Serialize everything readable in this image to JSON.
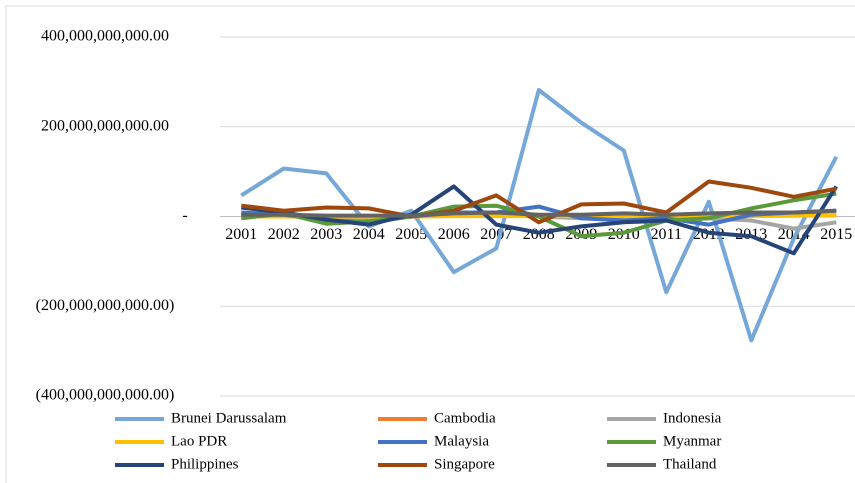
{
  "chart_data": {
    "type": "line",
    "categories": [
      "2001",
      "2002",
      "2003",
      "2004",
      "2005",
      "2006",
      "2007",
      "2008",
      "2009",
      "2010",
      "2011",
      "2012",
      "2013",
      "2014",
      "2015"
    ],
    "ylim": [
      -400000000000,
      400000000000
    ],
    "yticks": [
      {
        "value": -400000000000,
        "label": "(400,000,000,000.00)"
      },
      {
        "value": -200000000000,
        "label": "(200,000,000,000.00)"
      },
      {
        "value": 0,
        "label": "-"
      },
      {
        "value": 200000000000,
        "label": "200,000,000,000.00"
      },
      {
        "value": 400000000000,
        "label": "400,000,000,000.00"
      }
    ],
    "grid": true,
    "legend": "bottom",
    "series": [
      {
        "name": "Brunei Darussalam",
        "color": "#75a7d8",
        "values": [
          47000000000,
          107000000000,
          96000000000,
          -22000000000,
          13000000000,
          -124000000000,
          -71000000000,
          282000000000,
          209000000000,
          147000000000,
          -169000000000,
          33000000000,
          -276000000000,
          -49000000000,
          133000000000
        ]
      },
      {
        "name": "Cambodia",
        "color": "#ed7d31",
        "values": [
          1000000000,
          1000000000,
          1000000000,
          1000000000,
          1000000000,
          2000000000,
          2000000000,
          2000000000,
          2000000000,
          2000000000,
          2000000000,
          2000000000,
          2000000000,
          2000000000,
          3000000000
        ]
      },
      {
        "name": "Indonesia",
        "color": "#a5a5a5",
        "values": [
          0,
          2000000000,
          -2000000000,
          -4000000000,
          0,
          2000000000,
          4000000000,
          0,
          -4000000000,
          -2000000000,
          -4000000000,
          -4000000000,
          -9000000000,
          -27000000000,
          -13000000000
        ]
      },
      {
        "name": "Lao PDR",
        "color": "#ffc000",
        "values": [
          0,
          0,
          0,
          0,
          0,
          1000000000,
          1000000000,
          1000000000,
          1000000000,
          1000000000,
          1000000000,
          1000000000,
          1000000000,
          2000000000,
          2000000000
        ]
      },
      {
        "name": "Malaysia",
        "color": "#4472c4",
        "values": [
          9000000000,
          4000000000,
          -9000000000,
          -13000000000,
          0,
          9000000000,
          9000000000,
          22000000000,
          -4000000000,
          -9000000000,
          -4000000000,
          -18000000000,
          4000000000,
          9000000000,
          13000000000
        ]
      },
      {
        "name": "Myanmar",
        "color": "#5b9a3a",
        "values": [
          -4000000000,
          7000000000,
          -16000000000,
          -11000000000,
          0,
          22000000000,
          24000000000,
          0,
          -44000000000,
          -36000000000,
          -9000000000,
          -4000000000,
          18000000000,
          36000000000,
          51000000000
        ]
      },
      {
        "name": "Philippines",
        "color": "#264478",
        "values": [
          20000000000,
          9000000000,
          -7000000000,
          -18000000000,
          4000000000,
          67000000000,
          -18000000000,
          -36000000000,
          -22000000000,
          -13000000000,
          -9000000000,
          -36000000000,
          -44000000000,
          -82000000000,
          67000000000
        ]
      },
      {
        "name": "Singapore",
        "color": "#9e480e",
        "values": [
          24000000000,
          13000000000,
          20000000000,
          18000000000,
          0,
          13000000000,
          47000000000,
          -13000000000,
          27000000000,
          29000000000,
          9000000000,
          78000000000,
          64000000000,
          44000000000,
          62000000000
        ]
      },
      {
        "name": "Thailand",
        "color": "#636363",
        "values": [
          4000000000,
          4000000000,
          2000000000,
          2000000000,
          2000000000,
          7000000000,
          9000000000,
          4000000000,
          4000000000,
          7000000000,
          4000000000,
          7000000000,
          9000000000,
          9000000000,
          13000000000
        ]
      }
    ]
  }
}
